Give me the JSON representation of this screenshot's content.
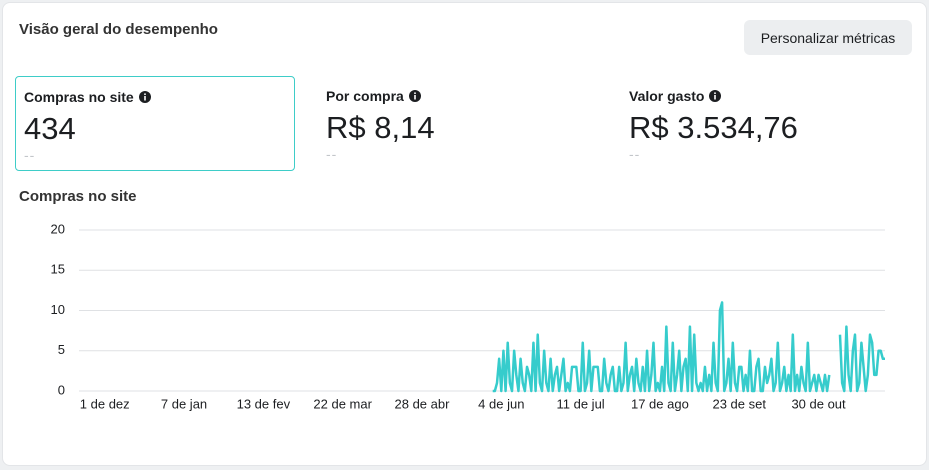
{
  "header": {
    "title": "Visão geral do desempenho",
    "button": "Personalizar métricas"
  },
  "metrics": [
    {
      "label": "Compras no site",
      "value": "434",
      "comparison": "--"
    },
    {
      "label": "Por compra",
      "value": "R$ 8,14",
      "comparison": "--"
    },
    {
      "label": "Valor gasto",
      "value": "R$ 3.534,76",
      "comparison": "--"
    }
  ],
  "chart_data": {
    "type": "line",
    "title": "Compras no site",
    "color": "#36cccc",
    "grid": true,
    "ylim": [
      0,
      20
    ],
    "yticks": [
      0,
      5,
      10,
      15,
      20
    ],
    "xlim": [
      0,
      376
    ],
    "xticks": [
      {
        "value": 12,
        "label": "1 de dez"
      },
      {
        "value": 49,
        "label": "7 de jan"
      },
      {
        "value": 86,
        "label": "13 de fev"
      },
      {
        "value": 123,
        "label": "22 de mar"
      },
      {
        "value": 160,
        "label": "28 de abr"
      },
      {
        "value": 197,
        "label": "4 de jun"
      },
      {
        "value": 234,
        "label": "11 de jul"
      },
      {
        "value": 271,
        "label": "17 de ago"
      },
      {
        "value": 308,
        "label": "23 de set"
      },
      {
        "value": 345,
        "label": "30 de out"
      }
    ],
    "values": [
      null,
      null,
      null,
      null,
      null,
      null,
      null,
      null,
      null,
      null,
      null,
      null,
      null,
      null,
      null,
      null,
      null,
      null,
      null,
      null,
      null,
      null,
      null,
      null,
      null,
      null,
      null,
      null,
      null,
      null,
      null,
      null,
      null,
      null,
      null,
      null,
      null,
      null,
      null,
      null,
      null,
      null,
      null,
      null,
      null,
      null,
      null,
      null,
      null,
      null,
      null,
      null,
      null,
      null,
      null,
      null,
      null,
      null,
      null,
      null,
      null,
      null,
      null,
      null,
      null,
      null,
      null,
      null,
      null,
      null,
      null,
      null,
      null,
      null,
      null,
      null,
      null,
      null,
      null,
      null,
      null,
      null,
      null,
      null,
      null,
      null,
      null,
      null,
      null,
      null,
      null,
      null,
      null,
      null,
      null,
      null,
      null,
      null,
      null,
      null,
      null,
      null,
      null,
      null,
      null,
      null,
      null,
      null,
      null,
      null,
      null,
      null,
      null,
      null,
      null,
      null,
      null,
      null,
      null,
      null,
      null,
      null,
      null,
      null,
      null,
      null,
      null,
      null,
      null,
      null,
      null,
      null,
      null,
      null,
      null,
      null,
      null,
      null,
      null,
      null,
      null,
      null,
      null,
      null,
      null,
      null,
      null,
      null,
      null,
      null,
      null,
      null,
      null,
      null,
      null,
      null,
      null,
      null,
      null,
      null,
      null,
      null,
      null,
      null,
      null,
      null,
      null,
      null,
      null,
      null,
      null,
      null,
      null,
      null,
      null,
      null,
      null,
      null,
      null,
      null,
      null,
      null,
      null,
      null,
      null,
      null,
      null,
      null,
      null,
      null,
      null,
      null,
      null,
      0,
      0,
      1,
      4,
      0,
      5,
      0,
      6,
      1,
      0,
      5,
      2,
      0,
      4,
      1,
      0,
      3,
      2,
      0,
      6,
      0,
      7,
      1,
      0,
      5,
      1,
      0,
      4,
      0,
      2,
      3,
      0,
      2,
      4,
      0,
      1,
      0,
      3,
      3,
      3,
      0,
      0,
      6,
      0,
      1,
      5,
      0,
      3,
      3,
      3,
      0,
      0,
      4,
      1,
      0,
      2,
      3,
      0,
      0,
      3,
      0,
      1,
      6,
      0,
      2,
      3,
      0,
      4,
      1,
      0,
      3,
      0,
      5,
      0,
      2,
      6,
      0,
      1,
      0,
      3,
      0,
      8,
      1,
      0,
      6,
      0,
      2,
      5,
      0,
      3,
      4,
      0,
      8,
      0,
      7,
      1,
      0,
      1,
      0,
      3,
      0,
      2,
      0,
      6,
      1,
      0,
      10,
      11,
      0,
      1,
      4,
      0,
      6,
      1,
      0,
      3,
      3,
      0,
      2,
      0,
      5,
      0,
      0,
      3,
      4,
      0,
      0,
      3,
      1,
      2,
      4,
      0,
      1,
      6,
      0,
      1,
      3,
      0,
      2,
      0,
      7,
      0,
      2,
      0,
      3,
      1,
      0,
      6,
      0,
      1,
      2,
      0,
      2,
      1,
      0,
      2,
      0,
      2,
      null,
      null,
      null,
      null,
      7,
      1,
      0,
      8,
      2,
      0,
      5,
      7,
      0,
      1,
      6,
      3,
      0,
      2,
      7,
      6,
      2,
      2,
      5,
      5,
      4,
      4
    ]
  }
}
